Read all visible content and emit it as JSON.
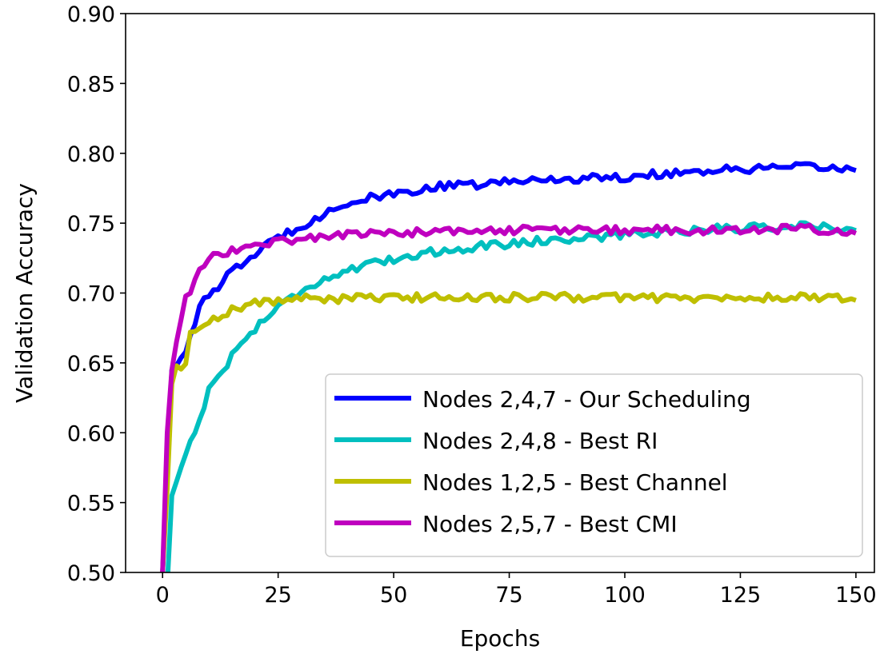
{
  "chart_data": {
    "type": "line",
    "title": "",
    "xlabel": "Epochs",
    "ylabel": "Validation Accuracy",
    "xlim": [
      -8,
      154
    ],
    "ylim": [
      0.5,
      0.9
    ],
    "xticks": [
      "0",
      "25",
      "50",
      "75",
      "100",
      "125",
      "150"
    ],
    "yticks": [
      "0.50",
      "0.55",
      "0.60",
      "0.65",
      "0.70",
      "0.75",
      "0.80",
      "0.85",
      "0.90"
    ],
    "grid": false,
    "legend_position": "lower-right",
    "series": [
      {
        "name": "Nodes 2,4,7 - Our Scheduling",
        "color": "#0000ff",
        "anchors": [
          [
            0,
            0.5
          ],
          [
            1,
            0.57
          ],
          [
            2,
            0.645
          ],
          [
            3,
            0.648
          ],
          [
            5,
            0.66
          ],
          [
            8,
            0.69
          ],
          [
            12,
            0.705
          ],
          [
            15,
            0.715
          ],
          [
            20,
            0.728
          ],
          [
            25,
            0.74
          ],
          [
            30,
            0.748
          ],
          [
            35,
            0.757
          ],
          [
            40,
            0.764
          ],
          [
            45,
            0.768
          ],
          [
            50,
            0.77
          ],
          [
            55,
            0.774
          ],
          [
            60,
            0.776
          ],
          [
            70,
            0.778
          ],
          [
            80,
            0.781
          ],
          [
            90,
            0.782
          ],
          [
            100,
            0.783
          ],
          [
            110,
            0.786
          ],
          [
            120,
            0.788
          ],
          [
            130,
            0.789
          ],
          [
            140,
            0.79
          ],
          [
            150,
            0.789
          ]
        ],
        "noise": 0.003
      },
      {
        "name": "Nodes 2,4,8 - Best RI",
        "color": "#00bfbf",
        "anchors": [
          [
            0,
            0.45
          ],
          [
            1,
            0.49
          ],
          [
            2,
            0.555
          ],
          [
            3,
            0.565
          ],
          [
            5,
            0.585
          ],
          [
            8,
            0.61
          ],
          [
            10,
            0.63
          ],
          [
            12,
            0.64
          ],
          [
            15,
            0.655
          ],
          [
            20,
            0.675
          ],
          [
            25,
            0.69
          ],
          [
            30,
            0.702
          ],
          [
            35,
            0.71
          ],
          [
            40,
            0.716
          ],
          [
            45,
            0.72
          ],
          [
            50,
            0.724
          ],
          [
            55,
            0.728
          ],
          [
            60,
            0.73
          ],
          [
            70,
            0.734
          ],
          [
            80,
            0.737
          ],
          [
            90,
            0.739
          ],
          [
            100,
            0.742
          ],
          [
            110,
            0.744
          ],
          [
            120,
            0.746
          ],
          [
            130,
            0.747
          ],
          [
            140,
            0.748
          ],
          [
            150,
            0.746
          ]
        ],
        "noise": 0.003
      },
      {
        "name": "Nodes 1,2,5 - Best Channel",
        "color": "#bfbf00",
        "anchors": [
          [
            0,
            0.5
          ],
          [
            1,
            0.56
          ],
          [
            2,
            0.635
          ],
          [
            3,
            0.648
          ],
          [
            4,
            0.645
          ],
          [
            5,
            0.648
          ],
          [
            6,
            0.67
          ],
          [
            8,
            0.677
          ],
          [
            10,
            0.68
          ],
          [
            15,
            0.688
          ],
          [
            20,
            0.693
          ],
          [
            30,
            0.696
          ],
          [
            40,
            0.696
          ],
          [
            60,
            0.697
          ],
          [
            80,
            0.697
          ],
          [
            100,
            0.697
          ],
          [
            120,
            0.696
          ],
          [
            140,
            0.697
          ],
          [
            150,
            0.696
          ]
        ],
        "noise": 0.003
      },
      {
        "name": "Nodes 2,5,7 - Best CMI",
        "color": "#bf00bf",
        "anchors": [
          [
            0,
            0.5
          ],
          [
            1,
            0.6
          ],
          [
            2,
            0.645
          ],
          [
            3,
            0.665
          ],
          [
            4,
            0.68
          ],
          [
            5,
            0.695
          ],
          [
            7,
            0.71
          ],
          [
            9,
            0.72
          ],
          [
            11,
            0.727
          ],
          [
            15,
            0.73
          ],
          [
            20,
            0.734
          ],
          [
            25,
            0.737
          ],
          [
            30,
            0.739
          ],
          [
            40,
            0.742
          ],
          [
            60,
            0.744
          ],
          [
            80,
            0.745
          ],
          [
            100,
            0.745
          ],
          [
            120,
            0.745
          ],
          [
            140,
            0.746
          ],
          [
            150,
            0.744
          ]
        ],
        "noise": 0.003
      }
    ]
  }
}
